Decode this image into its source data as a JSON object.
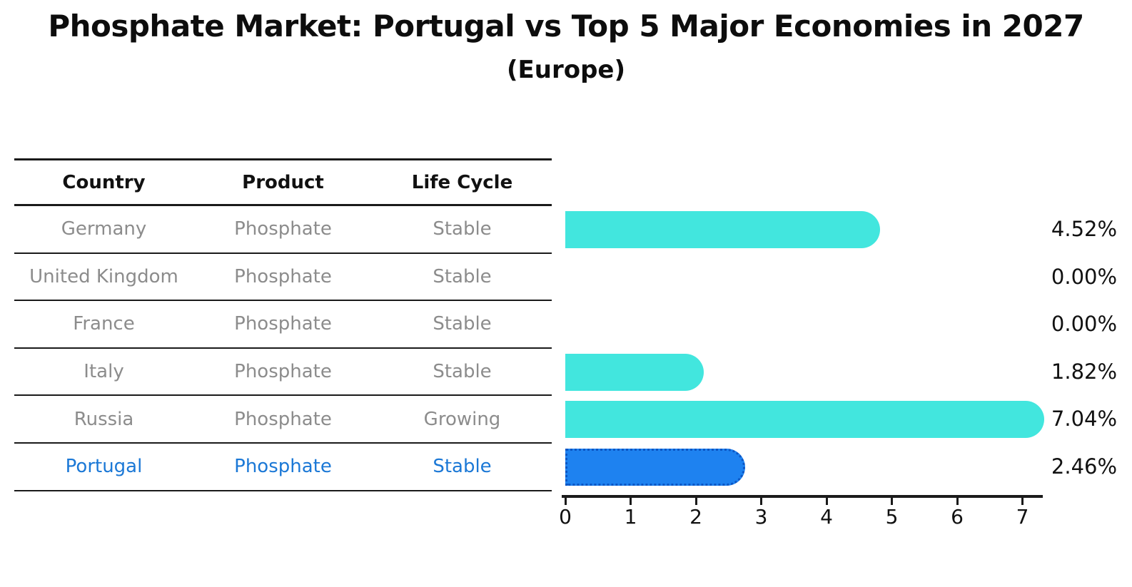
{
  "title": "Phosphate Market: Portugal vs Top 5 Major Economies in 2027",
  "subtitle": "(Europe)",
  "table": {
    "columns": [
      "Country",
      "Product",
      "Life Cycle"
    ],
    "rows": [
      {
        "country": "Germany",
        "product": "Phosphate",
        "life_cycle": "Stable",
        "value": 4.52,
        "label": "4.52%",
        "highlight": false
      },
      {
        "country": "United Kingdom",
        "product": "Phosphate",
        "life_cycle": "Stable",
        "value": 0.0,
        "label": "0.00%",
        "highlight": false
      },
      {
        "country": "France",
        "product": "Phosphate",
        "life_cycle": "Stable",
        "value": 0.0,
        "label": "0.00%",
        "highlight": false
      },
      {
        "country": "Italy",
        "product": "Phosphate",
        "life_cycle": "Stable",
        "value": 1.82,
        "label": "1.82%",
        "highlight": false
      },
      {
        "country": "Russia",
        "product": "Phosphate",
        "life_cycle": "Growing",
        "value": 7.04,
        "label": "7.04%",
        "highlight": false
      },
      {
        "country": "Portugal",
        "product": "Phosphate",
        "life_cycle": "Stable",
        "value": 2.46,
        "label": "2.46%",
        "highlight": true
      }
    ]
  },
  "chart_data": {
    "type": "bar",
    "orientation": "horizontal",
    "title": "Phosphate Market: Portugal vs Top 5 Major Economies in 2027",
    "subtitle": "(Europe)",
    "categories": [
      "Germany",
      "United Kingdom",
      "France",
      "Italy",
      "Russia",
      "Portugal"
    ],
    "values": [
      4.52,
      0.0,
      0.0,
      1.82,
      7.04,
      2.46
    ],
    "value_labels": [
      "4.52%",
      "0.00%",
      "0.00%",
      "1.82%",
      "7.04%",
      "2.46%"
    ],
    "x_ticks": [
      0,
      1,
      2,
      3,
      4,
      5,
      6,
      7
    ],
    "xlim": [
      0,
      7.3
    ],
    "grid": "off",
    "legend": "none",
    "bar_color": "#42e6de",
    "highlight_color": "#1e82f0",
    "highlight_border_color": "#0b56c4",
    "highlight_index": 5,
    "highlight_text_color": "#1b78d6",
    "xlabel": "",
    "ylabel": ""
  }
}
